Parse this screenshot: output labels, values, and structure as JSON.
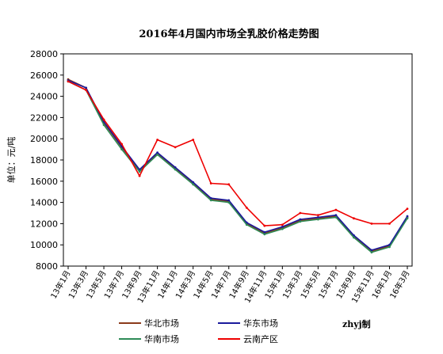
{
  "chart_data": {
    "type": "line",
    "title": "2016年4月国内市场全乳胶价格走势图",
    "ylabel": "单位：元/吨",
    "ylim": [
      8000,
      28000
    ],
    "yticks": [
      "8000",
      "10000",
      "12000",
      "14000",
      "16000",
      "18000",
      "20000",
      "22000",
      "24000",
      "26000",
      "28000"
    ],
    "categories": [
      "13年1月",
      "13年3月",
      "13年5月",
      "13年7月",
      "13年9月",
      "13年11月",
      "14年1月",
      "14年3月",
      "14年5月",
      "14年7月",
      "14年9月",
      "14年11月",
      "15年1月",
      "15年3月",
      "15年5月",
      "15年7月",
      "15年9月",
      "15年11月",
      "16年1月",
      "16年3月"
    ],
    "grid": false,
    "legend_position": "bottom",
    "credit": "zhyj制",
    "series": [
      {
        "name": "华北市场",
        "color": "#8b3a1a",
        "values": [
          25600,
          24800,
          21500,
          19200,
          17000,
          18600,
          17200,
          15800,
          14300,
          14100,
          12000,
          11100,
          11600,
          12300,
          12500,
          12700,
          10800,
          9400,
          9900,
          12600
        ]
      },
      {
        "name": "华东市场",
        "color": "#1a1a9c",
        "values": [
          25500,
          24800,
          21600,
          19300,
          17100,
          18700,
          17300,
          15900,
          14400,
          14200,
          12100,
          11200,
          11700,
          12400,
          12600,
          12800,
          10900,
          9500,
          10000,
          12700
        ]
      },
      {
        "name": "华南市场",
        "color": "#2e8b57",
        "values": [
          25400,
          24600,
          21300,
          19000,
          16900,
          18500,
          17100,
          15700,
          14200,
          14000,
          11900,
          11000,
          11500,
          12200,
          12400,
          12600,
          10700,
          9300,
          9800,
          12500
        ]
      },
      {
        "name": "云南产区",
        "color": "#ee0000",
        "values": [
          25400,
          24600,
          21800,
          19500,
          16500,
          19900,
          19200,
          19900,
          15800,
          15700,
          13500,
          11800,
          11900,
          13000,
          12800,
          13300,
          12500,
          12000,
          12000,
          13400
        ]
      }
    ]
  }
}
